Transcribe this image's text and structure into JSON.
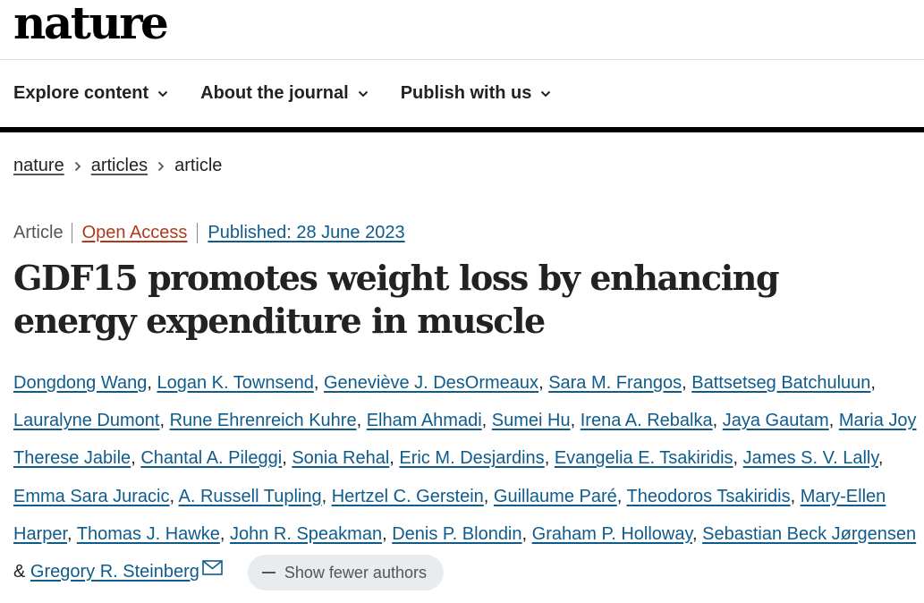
{
  "site": {
    "logo": "nature"
  },
  "nav": {
    "items": [
      {
        "label": "Explore content"
      },
      {
        "label": "About the journal"
      },
      {
        "label": "Publish with us"
      }
    ]
  },
  "breadcrumb": {
    "items": [
      "nature",
      "articles"
    ],
    "current": "article"
  },
  "article": {
    "type": "Article",
    "access": "Open Access",
    "published": "Published: 28 June 2023",
    "title": "GDF15 promotes weight loss by enhancing energy expenditure in muscle"
  },
  "authors": {
    "list": [
      "Dongdong Wang",
      "Logan K. Townsend",
      "Geneviève J. DesOrmeaux",
      "Sara M. Frangos",
      "Battsetseg Batchuluun",
      "Lauralyne Dumont",
      "Rune Ehrenreich Kuhre",
      "Elham Ahmadi",
      "Sumei Hu",
      "Irena A. Rebalka",
      "Jaya Gautam",
      "Maria Joy Therese Jabile",
      "Chantal A. Pileggi",
      "Sonia Rehal",
      "Eric M. Desjardins",
      "Evangelia E. Tsakiridis",
      "James S. V. Lally",
      "Emma Sara Juracic",
      "A. Russell Tupling",
      "Hertzel C. Gerstein",
      "Guillaume Paré",
      "Theodoros Tsakiridis",
      "Mary-Ellen Harper",
      "Thomas J. Hawke",
      "John R. Speakman",
      "Denis P. Blondin",
      "Graham P. Holloway",
      "Sebastian Beck Jørgensen",
      "Gregory R. Steinberg"
    ],
    "separator": ", ",
    "last_separator": " & ",
    "show_fewer_label": "Show fewer authors"
  },
  "colors": {
    "link": "#0f5c8c",
    "open_access": "#b0391d",
    "text": "#222222",
    "pill_bg": "#e8ecef"
  },
  "icons": {
    "nav_dropdown": "chevron-down-icon",
    "breadcrumb_separator": "chevron-right-icon",
    "corresponding_author": "envelope-icon",
    "collapse": "minus-icon"
  }
}
